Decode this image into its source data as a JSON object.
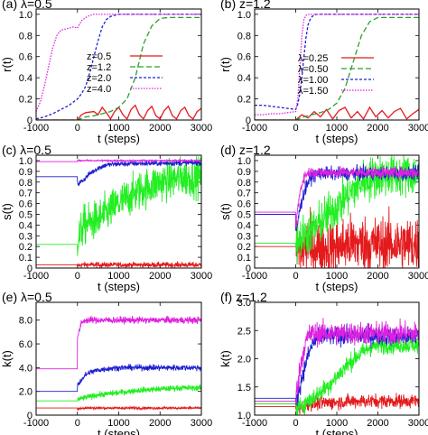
{
  "chart_data": [
    {
      "type": "line",
      "title": "(a) λ=0.5",
      "xlabel": "t (steps)",
      "ylabel": "r(t)",
      "xlim": [
        -1000,
        3000
      ],
      "ylim": [
        0,
        1.05
      ],
      "xticks": [
        "-1000",
        "0",
        "1000",
        "2000",
        "3000"
      ],
      "yticks": [
        "0",
        "0.2",
        "0.4",
        "0.6",
        "0.8",
        "1.0"
      ],
      "legend_position": "center-right",
      "series": [
        {
          "name": "z=0.5",
          "color": "#e41a1c",
          "noise": 0,
          "x": [
            -1000,
            -800,
            -600,
            -400,
            -200,
            0,
            100,
            200,
            400,
            500,
            600,
            700,
            800,
            900,
            1000,
            1100,
            1200,
            1300,
            1400,
            1500,
            1600,
            1700,
            1800,
            1900,
            2000,
            2100,
            2200,
            2300,
            2400,
            2500,
            2600,
            2700,
            2800,
            2900,
            3000
          ],
          "values": [
            0,
            0,
            0,
            0,
            0,
            0,
            0.05,
            0.07,
            0.08,
            0.05,
            0.12,
            0.07,
            0.01,
            0.08,
            0.12,
            0.05,
            0.01,
            0.1,
            0.14,
            0.05,
            0.01,
            0.09,
            0.13,
            0.04,
            0.01,
            0.09,
            0.13,
            0.04,
            0.01,
            0.09,
            0.12,
            0.04,
            0.01,
            0.08,
            0.11
          ]
        },
        {
          "name": "z=1.2",
          "color": "#2ca02c",
          "noise": 0,
          "x": [
            -1000,
            -800,
            -600,
            -400,
            -200,
            0,
            200,
            400,
            600,
            800,
            1000,
            1200,
            1400,
            1600,
            1800,
            2000,
            2200,
            2400,
            3000
          ],
          "values": [
            0,
            0,
            0,
            0,
            0,
            0,
            0.03,
            0.04,
            0.06,
            0.08,
            0.12,
            0.2,
            0.4,
            0.72,
            0.89,
            0.96,
            0.97,
            0.97,
            0.97
          ]
        },
        {
          "name": "z=2.0",
          "color": "#1f1fd0",
          "noise": 0,
          "x": [
            -1000,
            -800,
            -600,
            -400,
            -200,
            0,
            100,
            200,
            300,
            400,
            500,
            600,
            700,
            800,
            900,
            1000,
            1200,
            3000
          ],
          "values": [
            0.01,
            0.03,
            0.06,
            0.1,
            0.14,
            0.2,
            0.25,
            0.32,
            0.45,
            0.6,
            0.75,
            0.88,
            0.95,
            0.98,
            0.99,
            1,
            1,
            1
          ]
        },
        {
          "name": "z=4.0",
          "color": "#e020e0",
          "noise": 0,
          "x": [
            -1000,
            -900,
            -800,
            -700,
            -600,
            -500,
            -400,
            -300,
            -200,
            -100,
            0,
            100,
            200,
            300,
            400,
            500,
            3000
          ],
          "values": [
            0.08,
            0.17,
            0.32,
            0.5,
            0.68,
            0.8,
            0.85,
            0.86,
            0.87,
            0.88,
            0.87,
            0.94,
            0.97,
            0.99,
            1,
            1,
            1
          ]
        }
      ]
    },
    {
      "type": "line",
      "title": "(b) z=1.2",
      "xlabel": "t (steps)",
      "ylabel": "r(t)",
      "xlim": [
        -1000,
        3000
      ],
      "ylim": [
        0,
        1.05
      ],
      "xticks": [
        "-1000",
        "0",
        "1000",
        "2000",
        "3000"
      ],
      "yticks": [
        "0",
        "0.2",
        "0.4",
        "0.6",
        "0.8",
        "1.0"
      ],
      "legend_position": "center-right",
      "series": [
        {
          "name": "λ=0.25",
          "color": "#e41a1c",
          "noise": 0,
          "x": [
            -1000,
            -800,
            -600,
            -400,
            -200,
            0,
            150,
            300,
            450,
            600,
            750,
            900,
            1050,
            1200,
            1350,
            1500,
            1650,
            1800,
            1950,
            2100,
            2250,
            2400,
            2550,
            2700,
            2850,
            3000
          ],
          "values": [
            0,
            0,
            0,
            0,
            0,
            0,
            0.05,
            0.02,
            0.08,
            0.03,
            0.1,
            0.01,
            0.09,
            0.12,
            0.02,
            0.08,
            0.01,
            0.12,
            0.03,
            0.09,
            0.02,
            0.08,
            0.11,
            0.01,
            0.06,
            0.1
          ]
        },
        {
          "name": "λ=0.50",
          "color": "#2ca02c",
          "noise": 0,
          "x": [
            -1000,
            -800,
            -600,
            -400,
            -200,
            0,
            200,
            400,
            600,
            800,
            1000,
            1200,
            1400,
            1600,
            1800,
            2000,
            2200,
            3000
          ],
          "values": [
            0,
            0,
            0,
            0,
            0,
            0,
            0.03,
            0.05,
            0.07,
            0.1,
            0.16,
            0.3,
            0.55,
            0.8,
            0.93,
            0.97,
            0.97,
            0.97
          ]
        },
        {
          "name": "λ=1.00",
          "color": "#1f1fd0",
          "noise": 0,
          "x": [
            -1000,
            -800,
            -600,
            -400,
            -200,
            0,
            50,
            100,
            150,
            200,
            250,
            300,
            350,
            400,
            450,
            500,
            3000
          ],
          "values": [
            0.14,
            0.14,
            0.13,
            0.12,
            0.11,
            0.1,
            0.15,
            0.25,
            0.4,
            0.6,
            0.78,
            0.9,
            0.95,
            0.98,
            0.99,
            1,
            1
          ]
        },
        {
          "name": "λ=1.50",
          "color": "#e020e0",
          "noise": 0,
          "x": [
            -1000,
            -800,
            -600,
            -400,
            -200,
            0,
            50,
            100,
            150,
            200,
            250,
            300,
            350,
            3000
          ],
          "values": [
            0.05,
            0.05,
            0.06,
            0.06,
            0.07,
            0.08,
            0.2,
            0.5,
            0.8,
            0.95,
            0.99,
            1,
            1,
            1
          ]
        }
      ]
    },
    {
      "type": "line",
      "title": "(c) λ=0.5",
      "xlabel": "t (steps)",
      "ylabel": "s(t)",
      "xlim": [
        -1000,
        3000
      ],
      "ylim": [
        0,
        1.05
      ],
      "xticks": [
        "-1000",
        "0",
        "1000",
        "2000",
        "3000"
      ],
      "yticks": [
        "0",
        "0.1",
        "0.2",
        "0.3",
        "0.4",
        "0.5",
        "0.6",
        "0.7",
        "0.8",
        "0.9",
        "1.0"
      ],
      "series": [
        {
          "name": "",
          "color": "#e41a1c",
          "noise": 0.012,
          "x": [
            -1000,
            -1,
            0,
            100,
            3000
          ],
          "values": [
            0.03,
            0.03,
            0.02,
            0.03,
            0.03
          ]
        },
        {
          "name": "",
          "color": "#22ee22",
          "noise": 0.09,
          "x": [
            -1000,
            -1,
            0,
            150,
            500,
            1000,
            1500,
            2000,
            2500,
            3000
          ],
          "values": [
            0.22,
            0.22,
            0.25,
            0.4,
            0.45,
            0.6,
            0.72,
            0.8,
            0.84,
            0.85
          ]
        },
        {
          "name": "",
          "color": "#1f1fd0",
          "noise": 0.012,
          "x": [
            -1000,
            -1,
            0,
            150,
            300,
            500,
            700,
            1000,
            3000
          ],
          "values": [
            0.85,
            0.85,
            0.78,
            0.82,
            0.88,
            0.93,
            0.96,
            0.97,
            0.98
          ]
        },
        {
          "name": "",
          "color": "#e020e0",
          "noise": 0.003,
          "x": [
            -1000,
            -1,
            0,
            3000
          ],
          "values": [
            0.99,
            0.99,
            1,
            1
          ]
        }
      ]
    },
    {
      "type": "line",
      "title": "(d) z=1.2",
      "xlabel": "t (steps)",
      "ylabel": "s(t)",
      "xlim": [
        -1000,
        3000
      ],
      "ylim": [
        0,
        1.05
      ],
      "xticks": [
        "-1000",
        "0",
        "1000",
        "2000",
        "3000"
      ],
      "yticks": [
        "0",
        "0.1",
        "0.2",
        "0.3",
        "0.4",
        "0.5",
        "0.6",
        "0.7",
        "0.8",
        "0.9",
        "1.0"
      ],
      "series": [
        {
          "name": "",
          "color": "#e41a1c",
          "noise": 0.13,
          "x": [
            -1000,
            -1,
            0,
            300,
            800,
            1300,
            2000,
            3000
          ],
          "values": [
            0.2,
            0.2,
            0.15,
            0.2,
            0.18,
            0.23,
            0.22,
            0.22
          ]
        },
        {
          "name": "",
          "color": "#22ee22",
          "noise": 0.1,
          "x": [
            -1000,
            -1,
            0,
            400,
            800,
            1200,
            1600,
            2000,
            3000
          ],
          "values": [
            0.23,
            0.23,
            0.25,
            0.35,
            0.5,
            0.65,
            0.8,
            0.86,
            0.87
          ]
        },
        {
          "name": "",
          "color": "#1f1fd0",
          "noise": 0.03,
          "x": [
            -1000,
            -1,
            0,
            100,
            200,
            300,
            400,
            500,
            600,
            3000
          ],
          "values": [
            0.5,
            0.5,
            0.3,
            0.55,
            0.7,
            0.8,
            0.86,
            0.87,
            0.88,
            0.88
          ]
        },
        {
          "name": "",
          "color": "#e020e0",
          "noise": 0.025,
          "x": [
            -1000,
            -1,
            0,
            100,
            200,
            300,
            3000
          ],
          "values": [
            0.52,
            0.52,
            0.4,
            0.7,
            0.85,
            0.89,
            0.89
          ]
        }
      ]
    },
    {
      "type": "line",
      "title": "(e) λ=0.5",
      "xlabel": "t (steps)",
      "ylabel": "k(t)",
      "xlim": [
        -1000,
        3000
      ],
      "ylim": [
        0,
        9.5
      ],
      "xticks": [
        "-1000",
        "0",
        "1000",
        "2000",
        "3000"
      ],
      "yticks": [
        "0",
        "2.0",
        "4.0",
        "6.0",
        "8.0"
      ],
      "series": [
        {
          "name": "",
          "color": "#e41a1c",
          "noise": 0.05,
          "x": [
            -1000,
            -1,
            0,
            100,
            3000
          ],
          "values": [
            0.6,
            0.6,
            0.5,
            0.6,
            0.6
          ]
        },
        {
          "name": "",
          "color": "#22ee22",
          "noise": 0.12,
          "x": [
            -1000,
            -1,
            0,
            200,
            500,
            1000,
            1500,
            2000,
            2500,
            3000
          ],
          "values": [
            1.2,
            1.2,
            1.3,
            1.5,
            1.7,
            1.9,
            2.1,
            2.2,
            2.3,
            2.3
          ]
        },
        {
          "name": "",
          "color": "#1f1fd0",
          "noise": 0.12,
          "x": [
            -1000,
            -1,
            0,
            100,
            200,
            300,
            500,
            700,
            1000,
            3000
          ],
          "values": [
            2.0,
            2.0,
            2.5,
            3.0,
            3.4,
            3.6,
            3.8,
            3.9,
            4.0,
            4.0
          ]
        },
        {
          "name": "",
          "color": "#e020e0",
          "noise": 0.14,
          "x": [
            -1000,
            -1,
            0,
            100,
            200,
            3000
          ],
          "values": [
            3.9,
            3.9,
            6.5,
            7.8,
            8.0,
            8.0
          ]
        }
      ]
    },
    {
      "type": "line",
      "title": "(f) z=1.2",
      "xlabel": "t (steps)",
      "ylabel": "k(t)",
      "xlim": [
        -1000,
        3000
      ],
      "ylim": [
        1.0,
        3.0
      ],
      "xticks": [
        "-1000",
        "0",
        "1000",
        "2000",
        "3000"
      ],
      "yticks": [
        "1.0",
        "1.5",
        "2.0",
        "2.5",
        "3.0"
      ],
      "series": [
        {
          "name": "",
          "color": "#e41a1c",
          "noise": 0.06,
          "x": [
            -1000,
            -1,
            0,
            300,
            800,
            1500,
            3000
          ],
          "values": [
            1.15,
            1.15,
            1.1,
            1.2,
            1.22,
            1.25,
            1.25
          ]
        },
        {
          "name": "",
          "color": "#22ee22",
          "noise": 0.08,
          "x": [
            -1000,
            -1,
            0,
            300,
            600,
            900,
            1200,
            1500,
            1800,
            2100,
            3000
          ],
          "values": [
            1.2,
            1.2,
            1.1,
            1.25,
            1.4,
            1.6,
            1.85,
            2.05,
            2.2,
            2.25,
            2.25
          ]
        },
        {
          "name": "",
          "color": "#1f1fd0",
          "noise": 0.08,
          "x": [
            -1000,
            -1,
            0,
            100,
            200,
            300,
            400,
            500,
            700,
            3000
          ],
          "values": [
            1.3,
            1.3,
            1.2,
            1.5,
            1.8,
            2.05,
            2.25,
            2.35,
            2.4,
            2.4
          ]
        },
        {
          "name": "",
          "color": "#e020e0",
          "noise": 0.1,
          "x": [
            -1000,
            -1,
            0,
            100,
            200,
            300,
            400,
            3000
          ],
          "values": [
            1.25,
            1.25,
            1.3,
            1.8,
            2.2,
            2.4,
            2.45,
            2.45
          ]
        }
      ]
    }
  ]
}
